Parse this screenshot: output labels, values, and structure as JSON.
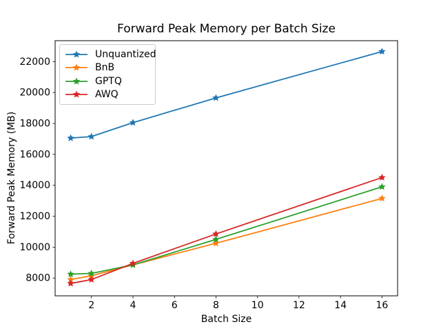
{
  "chart_data": {
    "type": "line",
    "title": "Forward Peak Memory per Batch Size",
    "xlabel": "Batch Size",
    "ylabel": "Forward Peak Memory (MB)",
    "x": [
      1,
      2,
      4,
      8,
      16
    ],
    "series": [
      {
        "name": "Unquantized",
        "color": "#1f77b4",
        "marker": "star",
        "values": [
          17050,
          17150,
          18050,
          19650,
          22650
        ]
      },
      {
        "name": "BnB",
        "color": "#ff7f0e",
        "marker": "star",
        "values": [
          7900,
          8150,
          8850,
          10250,
          13150
        ]
      },
      {
        "name": "GPTQ",
        "color": "#2ca02c",
        "marker": "star",
        "values": [
          8250,
          8300,
          8850,
          10500,
          13900
        ]
      },
      {
        "name": "AWQ",
        "color": "#d62728",
        "marker": "star",
        "values": [
          7650,
          7900,
          8950,
          10850,
          14500
        ]
      }
    ],
    "xticks": [
      2,
      4,
      6,
      8,
      10,
      12,
      14,
      16
    ],
    "yticks": [
      8000,
      10000,
      12000,
      14000,
      16000,
      18000,
      20000,
      22000
    ],
    "xlim": [
      0.25,
      16.75
    ],
    "ylim": [
      6850,
      23350
    ],
    "grid": false,
    "legend_position": "upper-left",
    "background_color": "#ffffff",
    "spine_color": "#000000"
  }
}
